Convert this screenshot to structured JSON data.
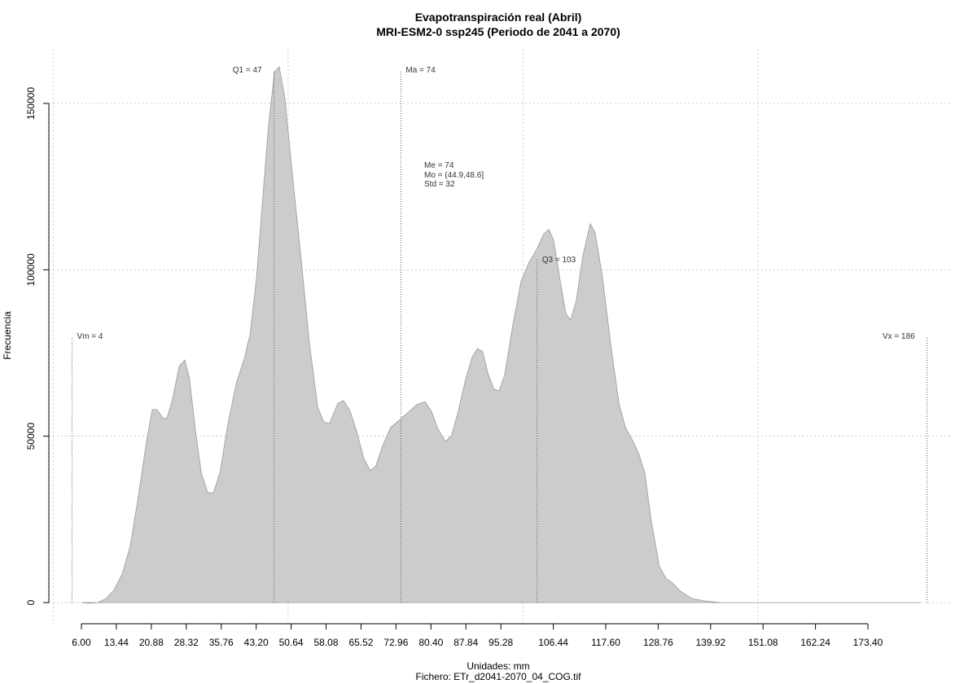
{
  "chart_data": {
    "type": "area",
    "title": "Evapotranspiración real (Abril)",
    "subtitle": "MRI-ESM2-0 ssp245 (Periodo de 2041 a 2070)",
    "x_label": "Unidades: mm",
    "caption": "Fichero: ETr_d2041-2070_04_COG.tif",
    "y_label": "Frecuencia",
    "color": "#cccccc",
    "grid": true,
    "xlim": [
      -0.93,
      191.42
    ],
    "ylim": [
      -6850,
      166400
    ],
    "xticks": [
      {
        "value": 6,
        "label": "6.00"
      },
      13.44,
      20.88,
      28.32,
      35.76,
      {
        "value": 43.2,
        "label": "43.20"
      },
      50.64,
      58.08,
      65.52,
      72.96,
      {
        "value": 80.4,
        "label": "80.40"
      },
      87.84,
      95.28,
      106.44,
      {
        "value": 117.6,
        "label": "117.60"
      },
      128.76,
      139.92,
      151.08,
      162.24,
      {
        "value": 173.4,
        "label": "173.40"
      }
    ],
    "xgrid": [
      0,
      50,
      100,
      150
    ],
    "yticks": [
      0,
      50000,
      100000,
      150000
    ],
    "x": [
      6,
      7.7,
      9.5,
      11.2,
      12.9,
      14.7,
      16.4,
      18.1,
      19.9,
      21.1,
      22.1,
      23.3,
      24.2,
      25.4,
      26.8,
      28.0,
      29.0,
      30.3,
      31.5,
      32.9,
      34.1,
      35.5,
      37.2,
      39.0,
      40.7,
      41.9,
      43.3,
      44.5,
      45.9,
      47.1,
      48.1,
      49.3,
      51.1,
      52.8,
      54.5,
      56.3,
      57.6,
      58.8,
      60.6,
      61.8,
      63.2,
      64.6,
      66.1,
      67.5,
      68.7,
      70.1,
      71.8,
      73.9,
      75.8,
      77.4,
      79.1,
      80.5,
      81.9,
      83.5,
      84.8,
      86.2,
      87.8,
      89.2,
      90.3,
      91.4,
      92.6,
      93.8,
      94.9,
      96.1,
      97.8,
      99.6,
      101.3,
      103.0,
      104.4,
      105.5,
      106.5,
      107.9,
      109.1,
      110.1,
      111.3,
      112.7,
      114.3,
      115.3,
      116.9,
      118.6,
      120.4,
      121.8,
      123.5,
      124.7,
      125.9,
      127.3,
      129.0,
      130.4,
      131.8,
      133.5,
      136.0,
      138.7,
      142.2,
      184.5
    ],
    "values": [
      0,
      -200,
      0,
      1200,
      3700,
      8600,
      17100,
      31800,
      48900,
      58000,
      58000,
      55500,
      55300,
      61200,
      71000,
      72900,
      67300,
      51400,
      39100,
      33000,
      33000,
      39100,
      53800,
      66100,
      73400,
      80700,
      97900,
      119900,
      144400,
      159500,
      161000,
      151700,
      126000,
      102800,
      78300,
      58700,
      54300,
      53800,
      59900,
      60700,
      57500,
      51400,
      43300,
      39600,
      41100,
      47000,
      52600,
      55100,
      57500,
      59500,
      60400,
      57500,
      52100,
      48400,
      50200,
      57500,
      67300,
      73900,
      76300,
      75400,
      68500,
      64100,
      63600,
      68500,
      83200,
      96700,
      102300,
      106400,
      110800,
      112100,
      108900,
      96700,
      86900,
      84900,
      90500,
      104000,
      113800,
      111400,
      97900,
      78300,
      59900,
      52600,
      48200,
      44500,
      39100,
      24500,
      11000,
      7300,
      5900,
      3400,
      1200,
      500,
      0,
      0
    ],
    "markers": [
      {
        "label": "Vm = 4",
        "x": 4,
        "top": 80000,
        "side": "right"
      },
      {
        "label": "Q1 = 47",
        "x": 47,
        "top": 160000,
        "side": "left"
      },
      {
        "label": "Ma = 74",
        "x": 74,
        "top": 160000,
        "side": "right"
      },
      {
        "label": "Q3 = 103",
        "x": 103,
        "top": 103000,
        "side": "right"
      },
      {
        "label": "Vx = 186",
        "x": 186,
        "top": 80000,
        "side": "left"
      }
    ],
    "stats": [
      "Me = 74",
      "Mo = (44.9,48.6]",
      "Std = 32"
    ]
  }
}
